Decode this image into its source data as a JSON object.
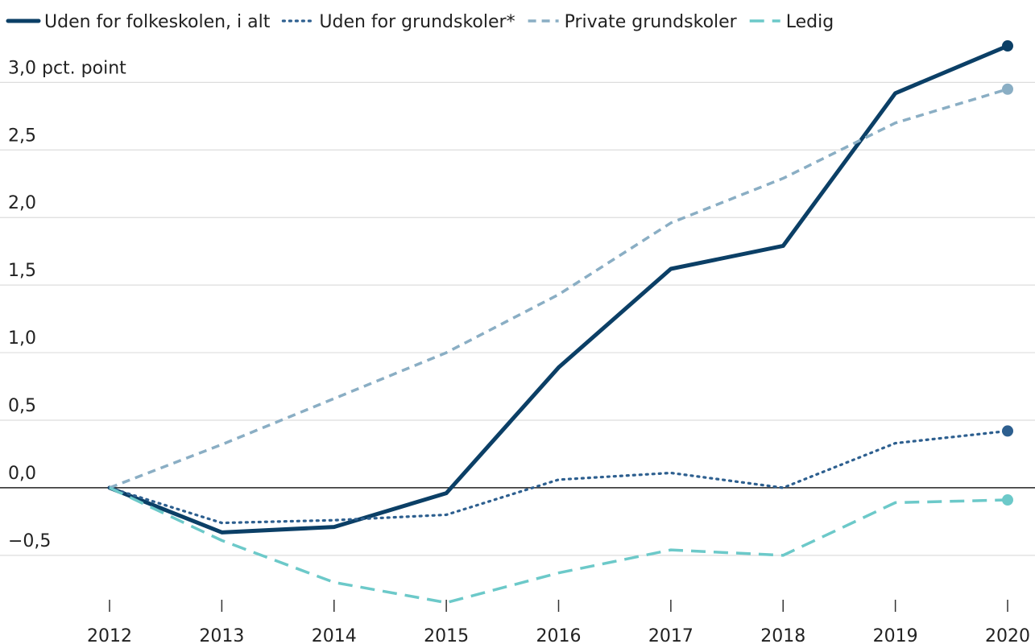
{
  "chart_data": {
    "type": "line",
    "categories": [
      "2012",
      "2013",
      "2014",
      "2015",
      "2016",
      "2017",
      "2018",
      "2019",
      "2020"
    ],
    "series": [
      {
        "name": "Uden for folkeskolen, i alt",
        "color": "#0b3f66",
        "style": "solid",
        "values": [
          0,
          -0.33,
          -0.29,
          -0.04,
          0.89,
          1.62,
          1.79,
          2.92,
          3.27
        ]
      },
      {
        "name": "Uden for grundskoler*",
        "color": "#2d5f8f",
        "style": "dotted",
        "values": [
          0,
          -0.26,
          -0.24,
          -0.2,
          0.06,
          0.11,
          0.0,
          0.33,
          0.42
        ]
      },
      {
        "name": "Private grundskoler",
        "color": "#8aaec4",
        "style": "dashed",
        "values": [
          0,
          0.32,
          0.66,
          1.0,
          1.43,
          1.96,
          2.29,
          2.7,
          2.95
        ]
      },
      {
        "name": "Ledig",
        "color": "#6cc9c9",
        "style": "longdash",
        "values": [
          0,
          -0.39,
          -0.7,
          -0.85,
          -0.63,
          -0.46,
          -0.5,
          -0.11,
          -0.09
        ]
      }
    ],
    "ylim": [
      -0.9,
      3.3
    ],
    "yticks": [
      {
        "value": -0.5,
        "label": "−0,5"
      },
      {
        "value": 0,
        "label": "0,0"
      },
      {
        "value": 0.5,
        "label": "0,5"
      },
      {
        "value": 1,
        "label": "1,0"
      },
      {
        "value": 1.5,
        "label": "1,5"
      },
      {
        "value": 2,
        "label": "2,0"
      },
      {
        "value": 2.5,
        "label": "2,5"
      },
      {
        "value": 3,
        "label": "3,0 pct. point"
      }
    ],
    "grid": true,
    "legend": "top"
  }
}
